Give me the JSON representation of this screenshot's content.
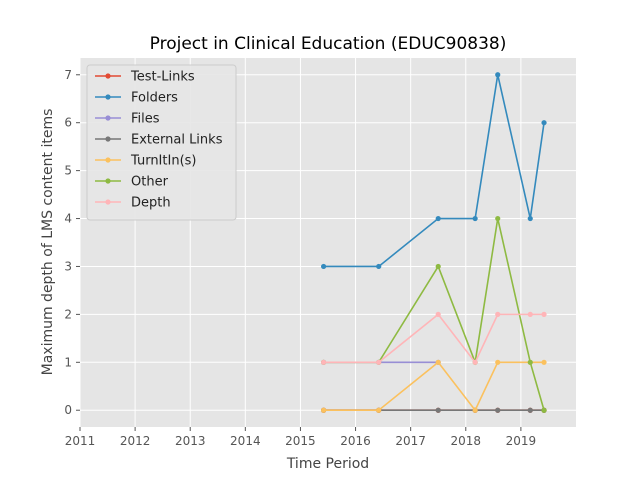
{
  "chart_data": {
    "type": "line",
    "title": "Project in Clinical Education (EDUC90838)",
    "xlabel": "Time Period",
    "ylabel": "Maximum depth of LMS content items",
    "xlim": [
      2011.0,
      2020.0
    ],
    "ylim": [
      -0.35,
      7.35
    ],
    "x_ticks": [
      2011,
      2012,
      2013,
      2014,
      2015,
      2016,
      2017,
      2018,
      2019
    ],
    "x_tick_labels": [
      "2011",
      "2012",
      "2013",
      "2014",
      "2015",
      "2016",
      "2017",
      "2018",
      "2019"
    ],
    "y_ticks": [
      0,
      1,
      2,
      3,
      4,
      5,
      6,
      7
    ],
    "y_tick_labels": [
      "0",
      "1",
      "2",
      "3",
      "4",
      "5",
      "6",
      "7"
    ],
    "grid": true,
    "legend_position": "top-left",
    "x": [
      2015.42,
      2016.42,
      2017.5,
      2018.17,
      2018.58,
      2019.17,
      2019.42
    ],
    "series": [
      {
        "name": "Test-Links",
        "color": "#E24A33",
        "values": [
          0,
          0,
          0,
          0,
          0,
          0,
          0
        ]
      },
      {
        "name": "Folders",
        "color": "#348ABD",
        "values": [
          3,
          3,
          4,
          4,
          7,
          4,
          6
        ]
      },
      {
        "name": "Files",
        "color": "#988ED5",
        "values": [
          1,
          1,
          1,
          null,
          null,
          null,
          null
        ]
      },
      {
        "name": "External Links",
        "color": "#777777",
        "values": [
          0,
          0,
          0,
          0,
          0,
          0,
          0
        ]
      },
      {
        "name": "TurnItIn(s)",
        "color": "#FBC15E",
        "values": [
          0,
          0,
          1,
          0,
          1,
          1,
          1
        ]
      },
      {
        "name": "Other",
        "color": "#8EBA42",
        "values": [
          1,
          1,
          3,
          1,
          4,
          1,
          0
        ]
      },
      {
        "name": "Depth",
        "color": "#FFB5B8",
        "values": [
          1,
          1,
          2,
          1,
          2,
          2,
          2
        ]
      }
    ]
  }
}
